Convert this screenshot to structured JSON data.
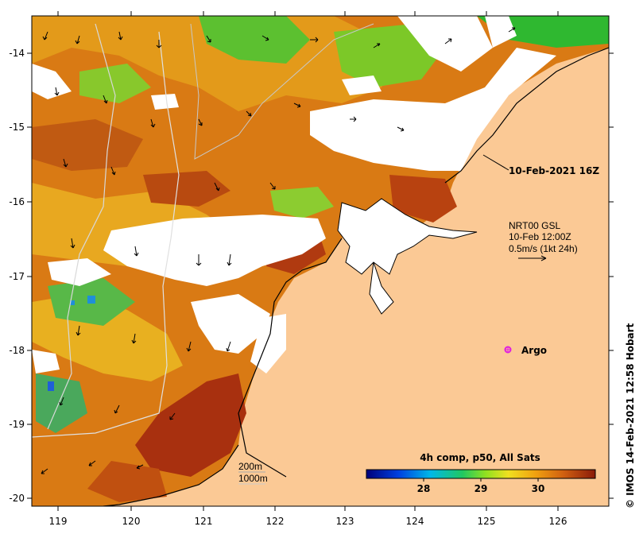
{
  "map": {
    "lon_ticks": [
      "119",
      "120",
      "121",
      "122",
      "123",
      "124",
      "125",
      "126"
    ],
    "lat_ticks": [
      "-14",
      "-15",
      "-16",
      "-17",
      "-18",
      "-19",
      "-20"
    ],
    "overlay_time_label": "10-Feb-2021 16Z",
    "current_info": {
      "line1": "NRT00 GSL",
      "line2": "10-Feb 12:00Z",
      "line3": "0.5m/s (1kt 24h)"
    },
    "argo_label": "Argo",
    "isobath_labels": {
      "shallow": "200m",
      "deep": "1000m"
    },
    "colorbar": {
      "title": "4h comp, p50, All Sats",
      "ticks": [
        "28",
        "29",
        "30"
      ]
    },
    "credit": "© IMOS 14-Feb-2021 12:58 Hobart",
    "colors": {
      "land": "#fbc995",
      "cloud": "#ffffff",
      "warm": "#d97a14",
      "hot": "#a8300f",
      "mid": "#e8b020",
      "cool": "#2fb830",
      "cold": "#1f8fd8",
      "argo": "#e020e0"
    }
  }
}
